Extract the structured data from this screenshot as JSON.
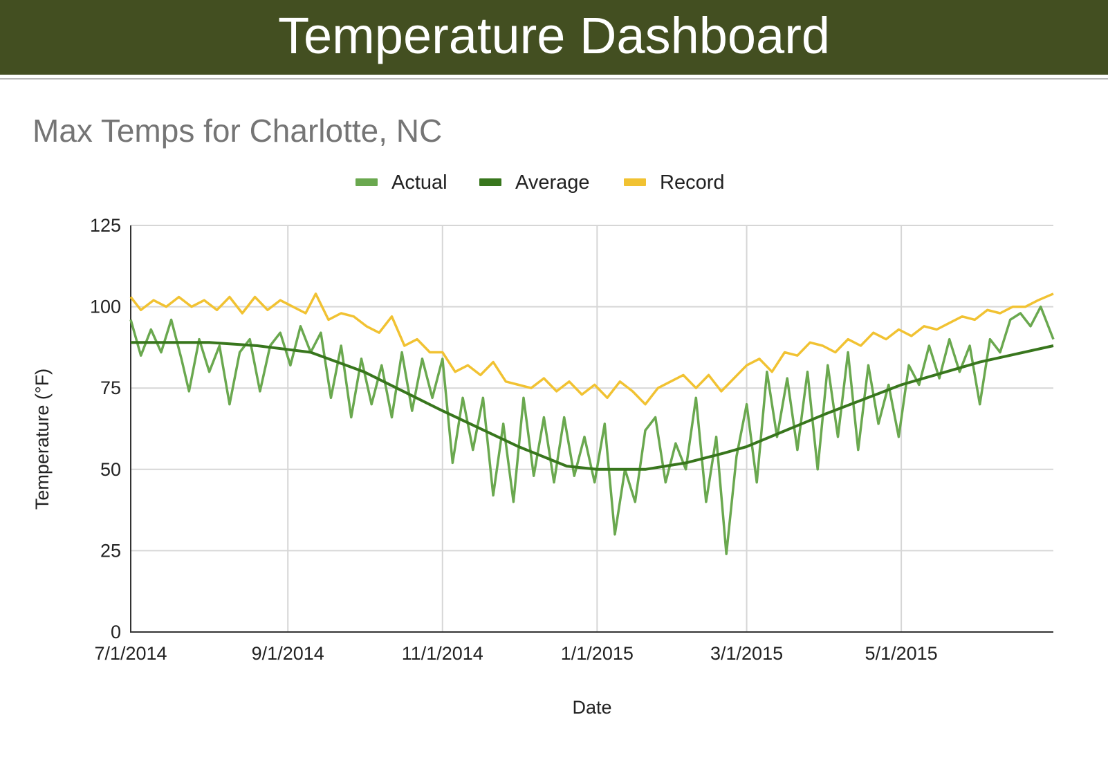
{
  "header": {
    "title": "Temperature Dashboard"
  },
  "chart_data": {
    "type": "line",
    "title": "Max Temps for Charlotte, NC",
    "xlabel": "Date",
    "ylabel": "Temperature (°F)",
    "ylim": [
      0,
      125
    ],
    "yticks": [
      "0",
      "25",
      "50",
      "75",
      "100",
      "125"
    ],
    "xticks": [
      "7/1/2014",
      "9/1/2014",
      "11/1/2014",
      "1/1/2015",
      "3/1/2015",
      "5/1/2015"
    ],
    "xlim": [
      "2014-07-01",
      "2015-06-30"
    ],
    "grid": true,
    "legend": "top-center",
    "series": [
      {
        "name": "Actual",
        "color": "#6aa84f",
        "points": [
          [
            "2014-07-01",
            96
          ],
          [
            "2014-07-05",
            85
          ],
          [
            "2014-07-09",
            93
          ],
          [
            "2014-07-13",
            86
          ],
          [
            "2014-07-17",
            96
          ],
          [
            "2014-07-21",
            84
          ],
          [
            "2014-07-24",
            74
          ],
          [
            "2014-07-28",
            90
          ],
          [
            "2014-08-01",
            80
          ],
          [
            "2014-08-05",
            88
          ],
          [
            "2014-08-09",
            70
          ],
          [
            "2014-08-13",
            86
          ],
          [
            "2014-08-17",
            90
          ],
          [
            "2014-08-21",
            74
          ],
          [
            "2014-08-25",
            88
          ],
          [
            "2014-08-29",
            92
          ],
          [
            "2014-09-02",
            82
          ],
          [
            "2014-09-06",
            94
          ],
          [
            "2014-09-10",
            86
          ],
          [
            "2014-09-14",
            92
          ],
          [
            "2014-09-18",
            72
          ],
          [
            "2014-09-22",
            88
          ],
          [
            "2014-09-26",
            66
          ],
          [
            "2014-09-30",
            84
          ],
          [
            "2014-10-04",
            70
          ],
          [
            "2014-10-08",
            82
          ],
          [
            "2014-10-12",
            66
          ],
          [
            "2014-10-16",
            86
          ],
          [
            "2014-10-20",
            68
          ],
          [
            "2014-10-24",
            84
          ],
          [
            "2014-10-28",
            72
          ],
          [
            "2014-11-01",
            84
          ],
          [
            "2014-11-05",
            52
          ],
          [
            "2014-11-09",
            72
          ],
          [
            "2014-11-13",
            56
          ],
          [
            "2014-11-17",
            72
          ],
          [
            "2014-11-21",
            42
          ],
          [
            "2014-11-25",
            64
          ],
          [
            "2014-11-29",
            40
          ],
          [
            "2014-12-03",
            72
          ],
          [
            "2014-12-07",
            48
          ],
          [
            "2014-12-11",
            66
          ],
          [
            "2014-12-15",
            46
          ],
          [
            "2014-12-19",
            66
          ],
          [
            "2014-12-23",
            48
          ],
          [
            "2014-12-27",
            60
          ],
          [
            "2014-12-31",
            46
          ],
          [
            "2015-01-04",
            64
          ],
          [
            "2015-01-08",
            30
          ],
          [
            "2015-01-12",
            50
          ],
          [
            "2015-01-16",
            40
          ],
          [
            "2015-01-20",
            62
          ],
          [
            "2015-01-24",
            66
          ],
          [
            "2015-01-28",
            46
          ],
          [
            "2015-02-01",
            58
          ],
          [
            "2015-02-05",
            50
          ],
          [
            "2015-02-09",
            72
          ],
          [
            "2015-02-13",
            40
          ],
          [
            "2015-02-17",
            60
          ],
          [
            "2015-02-21",
            24
          ],
          [
            "2015-02-25",
            54
          ],
          [
            "2015-03-01",
            70
          ],
          [
            "2015-03-05",
            46
          ],
          [
            "2015-03-09",
            80
          ],
          [
            "2015-03-13",
            60
          ],
          [
            "2015-03-17",
            78
          ],
          [
            "2015-03-21",
            56
          ],
          [
            "2015-03-25",
            80
          ],
          [
            "2015-03-29",
            50
          ],
          [
            "2015-04-02",
            82
          ],
          [
            "2015-04-06",
            60
          ],
          [
            "2015-04-10",
            86
          ],
          [
            "2015-04-14",
            56
          ],
          [
            "2015-04-18",
            82
          ],
          [
            "2015-04-22",
            64
          ],
          [
            "2015-04-26",
            76
          ],
          [
            "2015-04-30",
            60
          ],
          [
            "2015-05-04",
            82
          ],
          [
            "2015-05-08",
            76
          ],
          [
            "2015-05-12",
            88
          ],
          [
            "2015-05-16",
            78
          ],
          [
            "2015-05-20",
            90
          ],
          [
            "2015-05-24",
            80
          ],
          [
            "2015-05-28",
            88
          ],
          [
            "2015-06-01",
            70
          ],
          [
            "2015-06-05",
            90
          ],
          [
            "2015-06-09",
            86
          ],
          [
            "2015-06-13",
            96
          ],
          [
            "2015-06-17",
            98
          ],
          [
            "2015-06-21",
            94
          ],
          [
            "2015-06-25",
            100
          ],
          [
            "2015-06-30",
            90
          ]
        ]
      },
      {
        "name": "Average",
        "color": "#38761d",
        "points": [
          [
            "2014-07-01",
            89
          ],
          [
            "2014-08-01",
            89
          ],
          [
            "2014-08-20",
            88
          ],
          [
            "2014-09-10",
            86
          ],
          [
            "2014-10-01",
            80
          ],
          [
            "2014-11-01",
            68
          ],
          [
            "2014-12-01",
            57
          ],
          [
            "2014-12-20",
            51
          ],
          [
            "2015-01-01",
            50
          ],
          [
            "2015-01-20",
            50
          ],
          [
            "2015-02-05",
            52
          ],
          [
            "2015-02-20",
            55
          ],
          [
            "2015-03-01",
            57
          ],
          [
            "2015-04-01",
            67
          ],
          [
            "2015-05-01",
            76
          ],
          [
            "2015-06-01",
            83
          ],
          [
            "2015-06-30",
            88
          ]
        ]
      },
      {
        "name": "Record",
        "color": "#f1c232",
        "points": [
          [
            "2014-07-01",
            103
          ],
          [
            "2014-07-05",
            99
          ],
          [
            "2014-07-10",
            102
          ],
          [
            "2014-07-15",
            100
          ],
          [
            "2014-07-20",
            103
          ],
          [
            "2014-07-25",
            100
          ],
          [
            "2014-07-30",
            102
          ],
          [
            "2014-08-04",
            99
          ],
          [
            "2014-08-09",
            103
          ],
          [
            "2014-08-14",
            98
          ],
          [
            "2014-08-19",
            103
          ],
          [
            "2014-08-24",
            99
          ],
          [
            "2014-08-29",
            102
          ],
          [
            "2014-09-03",
            100
          ],
          [
            "2014-09-08",
            98
          ],
          [
            "2014-09-12",
            104
          ],
          [
            "2014-09-17",
            96
          ],
          [
            "2014-09-22",
            98
          ],
          [
            "2014-09-27",
            97
          ],
          [
            "2014-10-02",
            94
          ],
          [
            "2014-10-07",
            92
          ],
          [
            "2014-10-12",
            97
          ],
          [
            "2014-10-17",
            88
          ],
          [
            "2014-10-22",
            90
          ],
          [
            "2014-10-27",
            86
          ],
          [
            "2014-11-01",
            86
          ],
          [
            "2014-11-06",
            80
          ],
          [
            "2014-11-11",
            82
          ],
          [
            "2014-11-16",
            79
          ],
          [
            "2014-11-21",
            83
          ],
          [
            "2014-11-26",
            77
          ],
          [
            "2014-12-01",
            76
          ],
          [
            "2014-12-06",
            75
          ],
          [
            "2014-12-11",
            78
          ],
          [
            "2014-12-16",
            74
          ],
          [
            "2014-12-21",
            77
          ],
          [
            "2014-12-26",
            73
          ],
          [
            "2014-12-31",
            76
          ],
          [
            "2015-01-05",
            72
          ],
          [
            "2015-01-10",
            77
          ],
          [
            "2015-01-15",
            74
          ],
          [
            "2015-01-20",
            70
          ],
          [
            "2015-01-25",
            75
          ],
          [
            "2015-01-30",
            77
          ],
          [
            "2015-02-04",
            79
          ],
          [
            "2015-02-09",
            75
          ],
          [
            "2015-02-14",
            79
          ],
          [
            "2015-02-19",
            74
          ],
          [
            "2015-02-24",
            78
          ],
          [
            "2015-03-01",
            82
          ],
          [
            "2015-03-06",
            84
          ],
          [
            "2015-03-11",
            80
          ],
          [
            "2015-03-16",
            86
          ],
          [
            "2015-03-21",
            85
          ],
          [
            "2015-03-26",
            89
          ],
          [
            "2015-03-31",
            88
          ],
          [
            "2015-04-05",
            86
          ],
          [
            "2015-04-10",
            90
          ],
          [
            "2015-04-15",
            88
          ],
          [
            "2015-04-20",
            92
          ],
          [
            "2015-04-25",
            90
          ],
          [
            "2015-04-30",
            93
          ],
          [
            "2015-05-05",
            91
          ],
          [
            "2015-05-10",
            94
          ],
          [
            "2015-05-15",
            93
          ],
          [
            "2015-05-20",
            95
          ],
          [
            "2015-05-25",
            97
          ],
          [
            "2015-05-30",
            96
          ],
          [
            "2015-06-04",
            99
          ],
          [
            "2015-06-09",
            98
          ],
          [
            "2015-06-14",
            100
          ],
          [
            "2015-06-19",
            100
          ],
          [
            "2015-06-24",
            102
          ],
          [
            "2015-06-30",
            104
          ]
        ]
      }
    ]
  }
}
